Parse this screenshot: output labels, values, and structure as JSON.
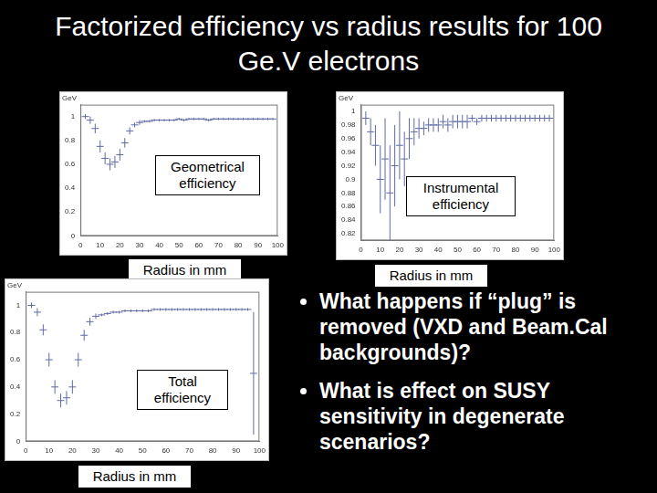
{
  "title": "Factorized efficiency vs radius results for 100 Ge.V electrons",
  "chart_data": [
    {
      "type": "scatter",
      "title": "GeV",
      "annotation": "Geometrical efficiency",
      "x_label": "Radius in mm",
      "x": [
        2.5,
        5,
        7.5,
        10,
        12.5,
        15,
        17.5,
        20,
        22.5,
        25,
        27.5,
        30,
        32.5,
        35,
        37.5,
        40,
        42.5,
        45,
        47.5,
        50,
        52.5,
        55,
        57.5,
        60,
        62.5,
        65,
        67.5,
        70,
        72.5,
        75,
        77.5,
        80,
        82.5,
        85,
        87.5,
        90,
        92.5,
        95,
        97.5
      ],
      "values": [
        1.0,
        0.97,
        0.9,
        0.75,
        0.65,
        0.6,
        0.62,
        0.68,
        0.78,
        0.88,
        0.93,
        0.95,
        0.96,
        0.96,
        0.97,
        0.97,
        0.97,
        0.97,
        0.97,
        0.98,
        0.97,
        0.98,
        0.98,
        0.98,
        0.98,
        0.97,
        0.98,
        0.98,
        0.98,
        0.98,
        0.98,
        0.98,
        0.98,
        0.98,
        0.98,
        0.98,
        0.98,
        0.98,
        0.98
      ],
      "y_errors": [
        0.02,
        0.03,
        0.04,
        0.05,
        0.05,
        0.05,
        0.05,
        0.05,
        0.04,
        0.03,
        0.02,
        0.02,
        0.01,
        0.01,
        0.01,
        0.01,
        0.01,
        0.01,
        0.01,
        0.01,
        0.01,
        0.01,
        0.01,
        0.01,
        0.01,
        0.01,
        0.01,
        0.01,
        0.01,
        0.01,
        0.01,
        0.01,
        0.01,
        0.01,
        0.01,
        0.01,
        0.01,
        0.01,
        0.01
      ],
      "color": "#5f6aa6",
      "marker": "line",
      "xlim": [
        0,
        100
      ],
      "xticks": [
        0,
        10,
        20,
        30,
        40,
        50,
        60,
        70,
        80,
        90,
        100
      ],
      "ylim": [
        0,
        1.1
      ],
      "yticks": [
        0,
        0.2,
        0.4,
        0.6,
        0.8,
        1
      ],
      "grid": false
    },
    {
      "type": "scatter",
      "title": "GeV",
      "annotation": "Instrumental efficiency",
      "x_label": "Radius in mm",
      "x": [
        2.5,
        5,
        7.5,
        10,
        12.5,
        15,
        17.5,
        20,
        22.5,
        25,
        27.5,
        30,
        32.5,
        35,
        37.5,
        40,
        42.5,
        45,
        47.5,
        50,
        52.5,
        55,
        57.5,
        60,
        62.5,
        65,
        67.5,
        70,
        72.5,
        75,
        77.5,
        80,
        82.5,
        85,
        87.5,
        90,
        92.5,
        95,
        97.5
      ],
      "values": [
        0.99,
        0.97,
        0.95,
        0.9,
        0.93,
        0.88,
        0.92,
        0.95,
        0.93,
        0.96,
        0.97,
        0.975,
        0.975,
        0.98,
        0.98,
        0.98,
        0.985,
        0.98,
        0.985,
        0.985,
        0.985,
        0.985,
        0.99,
        0.985,
        0.99,
        0.99,
        0.99,
        0.99,
        0.99,
        0.99,
        0.99,
        0.99,
        0.99,
        0.99,
        0.99,
        0.99,
        0.99,
        0.99,
        0.99
      ],
      "y_errors": [
        0.01,
        0.02,
        0.03,
        0.05,
        0.06,
        0.07,
        0.06,
        0.05,
        0.04,
        0.03,
        0.02,
        0.015,
        0.01,
        0.01,
        0.01,
        0.01,
        0.01,
        0.01,
        0.01,
        0.01,
        0.01,
        0.01,
        0.005,
        0.005,
        0.005,
        0.005,
        0.005,
        0.005,
        0.005,
        0.005,
        0.005,
        0.005,
        0.005,
        0.005,
        0.005,
        0.005,
        0.005,
        0.005,
        0.005
      ],
      "color": "#5f6aa6",
      "marker": "line",
      "xlim": [
        0,
        100
      ],
      "xticks": [
        0,
        10,
        20,
        30,
        40,
        50,
        60,
        70,
        80,
        90,
        100
      ],
      "ylim": [
        0.81,
        1.01
      ],
      "yticks": [
        0.82,
        0.84,
        0.86,
        0.88,
        0.9,
        0.92,
        0.94,
        0.96,
        0.98,
        1
      ],
      "grid": false
    },
    {
      "type": "scatter",
      "title": "GeV",
      "annotation": "Total efficiency",
      "x_label": "Radius in mm",
      "x": [
        2.5,
        5,
        7.5,
        10,
        12.5,
        15,
        17.5,
        20,
        22.5,
        25,
        27.5,
        30,
        32.5,
        35,
        37.5,
        40,
        42.5,
        45,
        47.5,
        50,
        52.5,
        55,
        57.5,
        60,
        62.5,
        65,
        67.5,
        70,
        72.5,
        75,
        77.5,
        80,
        82.5,
        85,
        87.5,
        90,
        92.5,
        95,
        97.5
      ],
      "values": [
        1.0,
        0.95,
        0.82,
        0.6,
        0.4,
        0.3,
        0.32,
        0.4,
        0.6,
        0.78,
        0.88,
        0.92,
        0.93,
        0.94,
        0.95,
        0.95,
        0.96,
        0.96,
        0.96,
        0.96,
        0.96,
        0.97,
        0.97,
        0.97,
        0.97,
        0.97,
        0.97,
        0.97,
        0.97,
        0.97,
        0.97,
        0.97,
        0.97,
        0.97,
        0.97,
        0.97,
        0.97,
        0.97,
        0.5
      ],
      "y_errors": [
        0.02,
        0.03,
        0.04,
        0.05,
        0.05,
        0.05,
        0.05,
        0.05,
        0.05,
        0.04,
        0.03,
        0.02,
        0.01,
        0.01,
        0.01,
        0.01,
        0.01,
        0.01,
        0.01,
        0.01,
        0.01,
        0.01,
        0.01,
        0.01,
        0.01,
        0.01,
        0.01,
        0.01,
        0.01,
        0.01,
        0.01,
        0.01,
        0.01,
        0.01,
        0.01,
        0.01,
        0.01,
        0.01,
        0.45
      ],
      "color": "#5f6aa6",
      "marker": "line",
      "xlim": [
        0,
        100
      ],
      "xticks": [
        0,
        10,
        20,
        30,
        40,
        50,
        60,
        70,
        80,
        90,
        100
      ],
      "ylim": [
        0,
        1.1
      ],
      "yticks": [
        0,
        0.2,
        0.4,
        0.6,
        0.8,
        1
      ],
      "grid": false
    }
  ],
  "bullets": [
    "What happens if “plug” is removed (VXD and Beam.Cal backgrounds)?",
    "What is effect on SUSY sensitivity in degenerate scenarios?"
  ]
}
